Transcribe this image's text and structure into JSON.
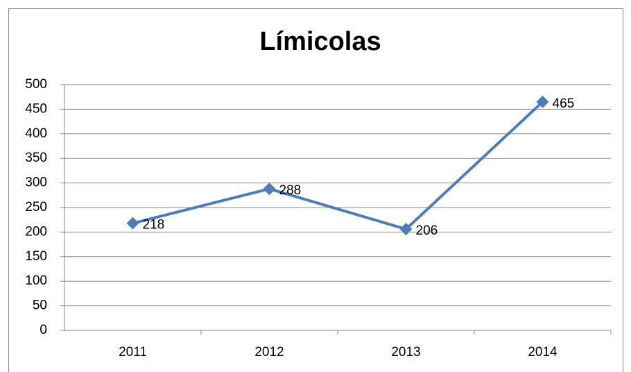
{
  "chart_data": {
    "type": "line",
    "title": "Límicolas",
    "categories": [
      "2011",
      "2012",
      "2013",
      "2014"
    ],
    "series": [
      {
        "name": "Límicolas",
        "color": "#4a7ebb",
        "values": [
          218,
          288,
          206,
          465
        ]
      }
    ],
    "ylim": [
      0,
      500
    ],
    "yticks": [
      0,
      50,
      100,
      150,
      200,
      250,
      300,
      350,
      400,
      450,
      500
    ],
    "grid": true,
    "data_labels": true
  }
}
